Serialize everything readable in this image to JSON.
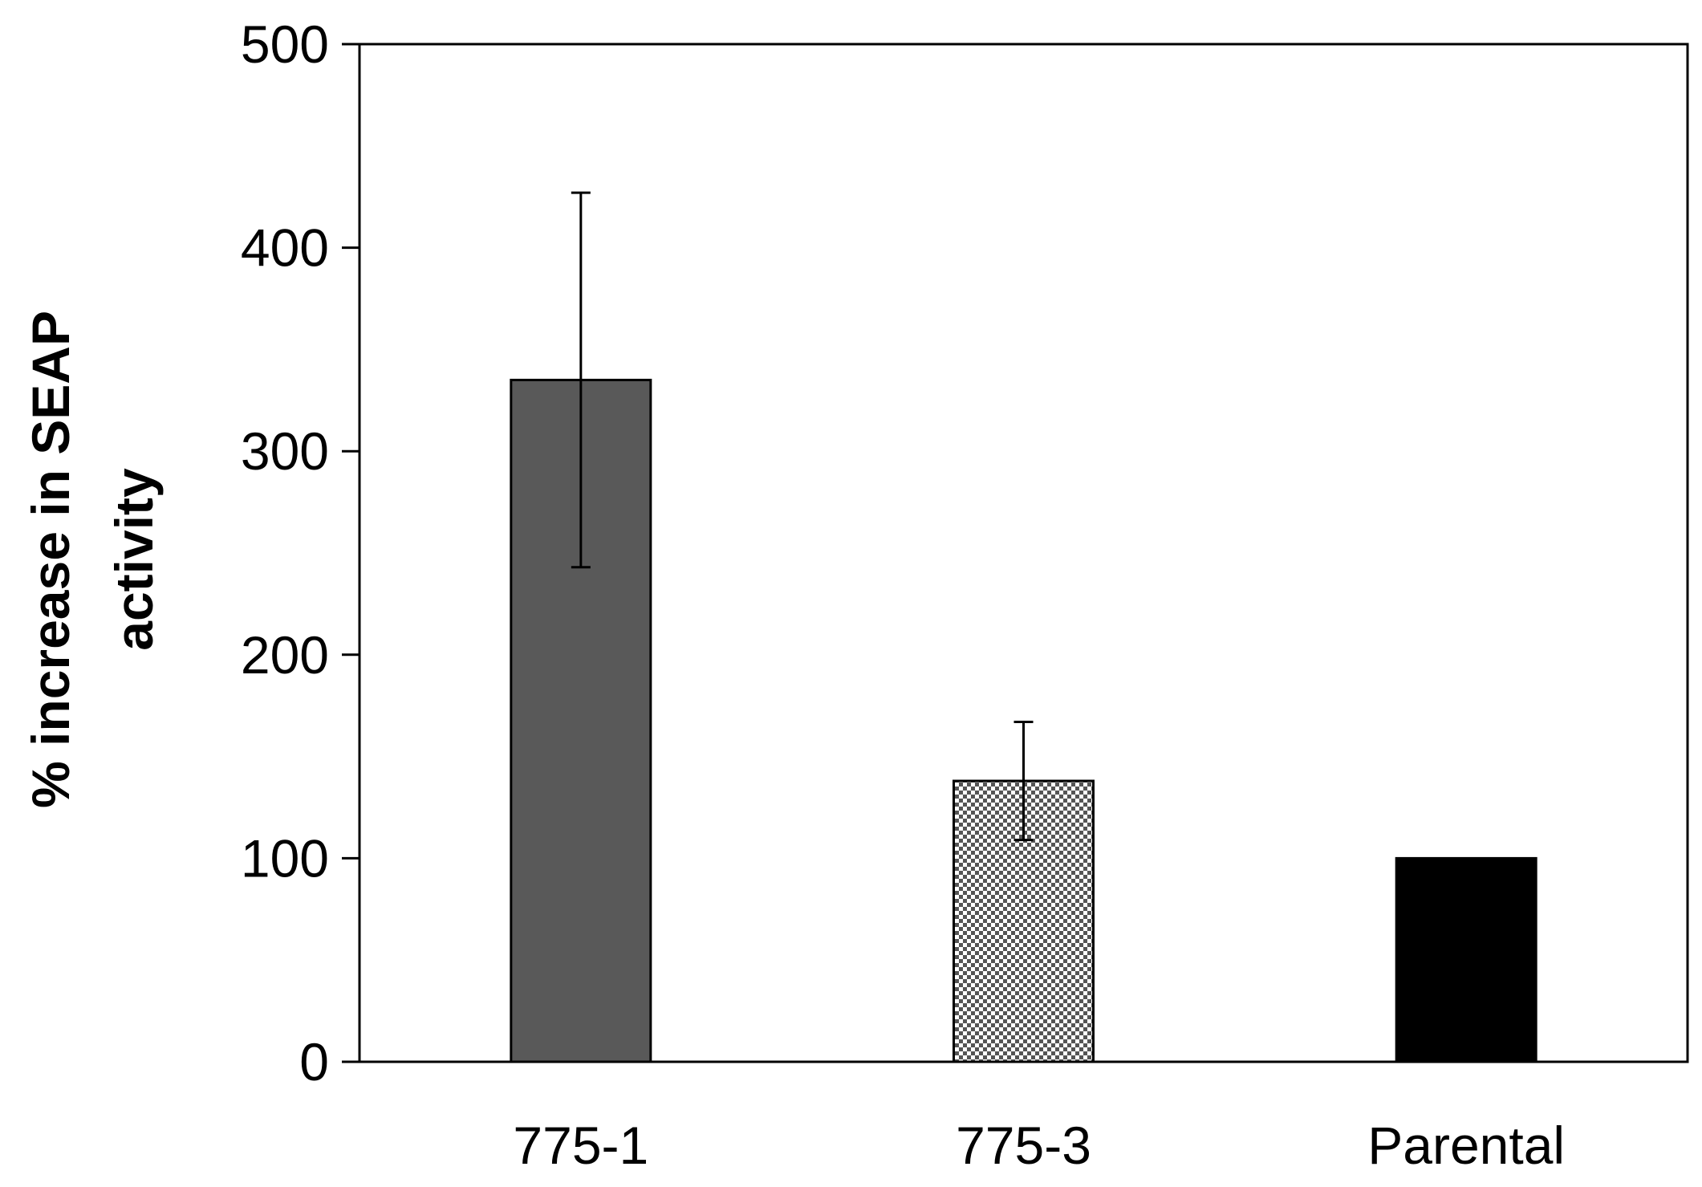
{
  "chart_data": {
    "type": "bar",
    "title": "",
    "xlabel": "",
    "ylabel_lines": [
      "% increase in SEAP",
      "activity"
    ],
    "ylim": [
      0,
      500
    ],
    "yticks": [
      0,
      100,
      200,
      300,
      400,
      500
    ],
    "categories": [
      "775-1",
      "775-3",
      "Parental"
    ],
    "values": [
      335,
      138,
      100
    ],
    "error": [
      92,
      29,
      0
    ],
    "fills": [
      "dark-gray",
      "checkerboard",
      "black"
    ],
    "colors": {
      "dark": "#595959",
      "black": "#000000",
      "checker_dark": "#555555",
      "checker_light": "#ffffff"
    },
    "grid": false,
    "legend": "none"
  }
}
